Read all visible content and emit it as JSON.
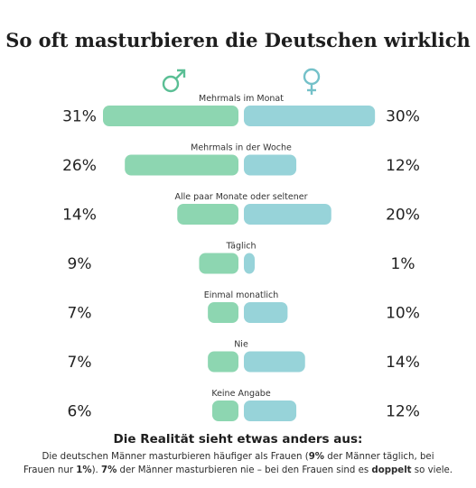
{
  "chart_data": {
    "type": "bar",
    "title": "So oft masturbieren die Deutschen wirklich",
    "series_symbols": {
      "male": "♂",
      "female": "♀"
    },
    "categories": [
      "Mehrmals im Monat",
      "Mehrmals in der Woche",
      "Alle paar Monate oder seltener",
      "Täglich",
      "Einmal monatlich",
      "Nie",
      "Keine Angabe"
    ],
    "series": [
      {
        "symbol": "♂",
        "color": "#8dd6b1",
        "values": [
          31,
          26,
          14,
          9,
          7,
          7,
          6
        ],
        "labels": [
          "31%",
          "26%",
          "14%",
          "9%",
          "7%",
          "7%",
          "6%"
        ]
      },
      {
        "symbol": "♀",
        "color": "#97d3d9",
        "values": [
          30,
          12,
          20,
          1,
          10,
          14,
          12
        ],
        "labels": [
          "30%",
          "12%",
          "20%",
          "1%",
          "10%",
          "14%",
          "12%"
        ]
      }
    ],
    "value_max": 31
  },
  "footer": {
    "heading": "Die Realität sieht etwas anders aus:",
    "line1_a": "Die deutschen Männer masturbieren häufiger als Frauen (",
    "line1_b": "9%",
    "line1_c": " der Männer täglich, bei",
    "line2_a": "Frauen nur ",
    "line2_b": "1%",
    "line2_c": "). ",
    "line2_d": "7%",
    "line2_e": " der Männer masturbieren nie – bei den Frauen sind es ",
    "line2_f": "doppelt",
    "line2_g": " so viele."
  },
  "colors": {
    "male_symbol": "#5bbf95",
    "female_symbol": "#74c1c9"
  }
}
